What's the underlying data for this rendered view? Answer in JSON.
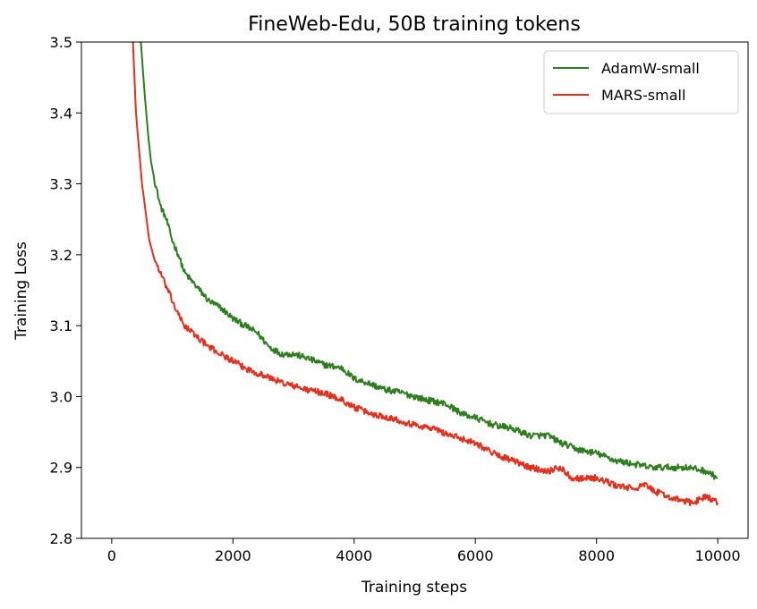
{
  "chart_data": {
    "type": "line",
    "title": "FineWeb-Edu, 50B training tokens",
    "xlabel": "Training steps",
    "ylabel": "Training Loss",
    "xlim": [
      -500,
      10500
    ],
    "ylim": [
      2.8,
      3.5
    ],
    "xticks": [
      0,
      2000,
      4000,
      6000,
      8000,
      10000
    ],
    "yticks": [
      2.8,
      2.9,
      3.0,
      3.1,
      3.2,
      3.3,
      3.4,
      3.5
    ],
    "xtick_labels": [
      "0",
      "2000",
      "4000",
      "6000",
      "8000",
      "10000"
    ],
    "ytick_labels": [
      "2.8",
      "2.9",
      "3.0",
      "3.1",
      "3.2",
      "3.3",
      "3.4",
      "3.5"
    ],
    "grid": false,
    "legend": "top-right",
    "series": [
      {
        "name": "AdamW-small",
        "color": "#2e7d1f",
        "points": [
          [
            400,
            3.6
          ],
          [
            480,
            3.5
          ],
          [
            550,
            3.42
          ],
          [
            600,
            3.37
          ],
          [
            650,
            3.33
          ],
          [
            720,
            3.3
          ],
          [
            800,
            3.27
          ],
          [
            900,
            3.25
          ],
          [
            1000,
            3.22
          ],
          [
            1100,
            3.2
          ],
          [
            1200,
            3.175
          ],
          [
            1300,
            3.165
          ],
          [
            1400,
            3.155
          ],
          [
            1500,
            3.145
          ],
          [
            1600,
            3.135
          ],
          [
            1800,
            3.125
          ],
          [
            2000,
            3.11
          ],
          [
            2200,
            3.1
          ],
          [
            2400,
            3.09
          ],
          [
            2500,
            3.08
          ],
          [
            2600,
            3.07
          ],
          [
            2800,
            3.06
          ],
          [
            3000,
            3.06
          ],
          [
            3200,
            3.055
          ],
          [
            3500,
            3.045
          ],
          [
            3800,
            3.04
          ],
          [
            4000,
            3.025
          ],
          [
            4200,
            3.02
          ],
          [
            4500,
            3.01
          ],
          [
            4800,
            3.005
          ],
          [
            5000,
            3.0
          ],
          [
            5200,
            2.995
          ],
          [
            5500,
            2.99
          ],
          [
            5800,
            2.975
          ],
          [
            6000,
            2.97
          ],
          [
            6300,
            2.96
          ],
          [
            6600,
            2.955
          ],
          [
            6900,
            2.945
          ],
          [
            7200,
            2.945
          ],
          [
            7400,
            2.935
          ],
          [
            7700,
            2.925
          ],
          [
            8000,
            2.92
          ],
          [
            8300,
            2.91
          ],
          [
            8600,
            2.905
          ],
          [
            8900,
            2.9
          ],
          [
            9200,
            2.9
          ],
          [
            9500,
            2.9
          ],
          [
            9800,
            2.895
          ],
          [
            10000,
            2.885
          ]
        ]
      },
      {
        "name": "MARS-small",
        "color": "#e0301e",
        "points": [
          [
            320,
            3.55
          ],
          [
            350,
            3.5
          ],
          [
            400,
            3.4
          ],
          [
            450,
            3.35
          ],
          [
            500,
            3.3
          ],
          [
            560,
            3.26
          ],
          [
            620,
            3.22
          ],
          [
            700,
            3.195
          ],
          [
            800,
            3.175
          ],
          [
            900,
            3.155
          ],
          [
            1000,
            3.135
          ],
          [
            1100,
            3.115
          ],
          [
            1200,
            3.1
          ],
          [
            1400,
            3.085
          ],
          [
            1600,
            3.07
          ],
          [
            1800,
            3.06
          ],
          [
            2000,
            3.05
          ],
          [
            2200,
            3.04
          ],
          [
            2500,
            3.03
          ],
          [
            2800,
            3.02
          ],
          [
            3000,
            3.015
          ],
          [
            3200,
            3.01
          ],
          [
            3500,
            3.005
          ],
          [
            3800,
            2.995
          ],
          [
            4000,
            2.985
          ],
          [
            4300,
            2.975
          ],
          [
            4600,
            2.97
          ],
          [
            5000,
            2.96
          ],
          [
            5300,
            2.955
          ],
          [
            5600,
            2.945
          ],
          [
            6000,
            2.935
          ],
          [
            6300,
            2.92
          ],
          [
            6600,
            2.91
          ],
          [
            6900,
            2.9
          ],
          [
            7200,
            2.895
          ],
          [
            7400,
            2.9
          ],
          [
            7600,
            2.885
          ],
          [
            8000,
            2.885
          ],
          [
            8300,
            2.875
          ],
          [
            8600,
            2.87
          ],
          [
            8800,
            2.875
          ],
          [
            9000,
            2.865
          ],
          [
            9300,
            2.855
          ],
          [
            9600,
            2.85
          ],
          [
            9800,
            2.86
          ],
          [
            10000,
            2.85
          ]
        ]
      }
    ]
  }
}
